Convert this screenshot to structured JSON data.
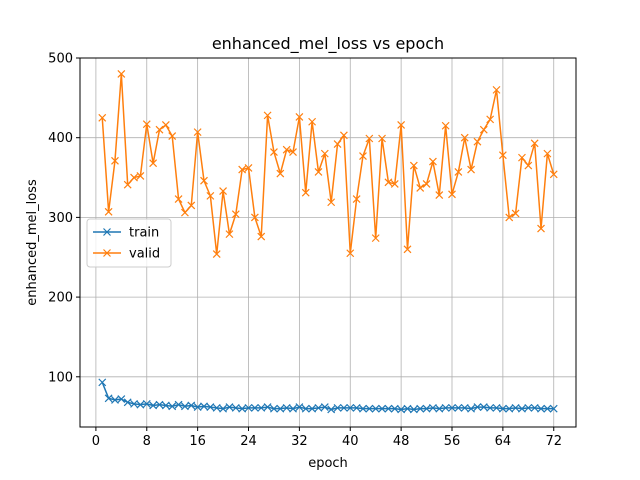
{
  "chart_data": {
    "type": "line",
    "title": "enhanced_mel_loss vs epoch",
    "xlabel": "epoch",
    "ylabel": "enhanced_mel_loss",
    "xlim": [
      -2.5,
      75.5
    ],
    "ylim": [
      37,
      500
    ],
    "xticks": [
      0,
      8,
      16,
      24,
      32,
      40,
      48,
      56,
      64,
      72
    ],
    "yticks": [
      100,
      200,
      300,
      400,
      500
    ],
    "grid": true,
    "legend": "center-left",
    "marker": "x",
    "series": [
      {
        "name": "train",
        "color": "#1f77b4",
        "x": [
          1,
          2,
          3,
          4,
          5,
          6,
          7,
          8,
          9,
          10,
          11,
          12,
          13,
          14,
          15,
          16,
          17,
          18,
          19,
          20,
          21,
          22,
          23,
          24,
          25,
          26,
          27,
          28,
          29,
          30,
          31,
          32,
          33,
          34,
          35,
          36,
          37,
          38,
          39,
          40,
          41,
          42,
          43,
          44,
          45,
          46,
          47,
          48,
          49,
          50,
          51,
          52,
          53,
          54,
          55,
          56,
          57,
          58,
          59,
          60,
          61,
          62,
          63,
          64,
          65,
          66,
          67,
          68,
          69,
          70,
          71,
          72
        ],
        "y": [
          93,
          73,
          71,
          72,
          68,
          66,
          65,
          66,
          64,
          65,
          64,
          63,
          65,
          63,
          64,
          62,
          63,
          62,
          61,
          60,
          62,
          61,
          60,
          61,
          61,
          61,
          62,
          60,
          60,
          61,
          60,
          62,
          60,
          60,
          61,
          62,
          59,
          61,
          61,
          61,
          61,
          60,
          60,
          60,
          60,
          60,
          60,
          59,
          60,
          59,
          60,
          60,
          61,
          60,
          61,
          61,
          61,
          61,
          60,
          62,
          62,
          61,
          61,
          60,
          60,
          61,
          60,
          61,
          61,
          60,
          60,
          60
        ]
      },
      {
        "name": "valid",
        "color": "#ff7f0e",
        "x": [
          1,
          2,
          3,
          4,
          5,
          6,
          7,
          8,
          9,
          10,
          11,
          12,
          13,
          14,
          15,
          16,
          17,
          18,
          19,
          20,
          21,
          22,
          23,
          24,
          25,
          26,
          27,
          28,
          29,
          30,
          31,
          32,
          33,
          34,
          35,
          36,
          37,
          38,
          39,
          40,
          41,
          42,
          43,
          44,
          45,
          46,
          47,
          48,
          49,
          50,
          51,
          52,
          53,
          54,
          55,
          56,
          57,
          58,
          59,
          60,
          61,
          62,
          63,
          64,
          65,
          66,
          67,
          68,
          69,
          70,
          71,
          72
        ],
        "y": [
          425,
          307,
          371,
          480,
          341,
          350,
          352,
          417,
          368,
          410,
          416,
          402,
          323,
          306,
          315,
          407,
          346,
          327,
          254,
          333,
          279,
          304,
          360,
          362,
          300,
          276,
          428,
          382,
          355,
          385,
          382,
          426,
          331,
          420,
          357,
          380,
          319,
          392,
          403,
          255,
          323,
          377,
          399,
          274,
          399,
          344,
          342,
          416,
          260,
          365,
          337,
          342,
          370,
          328,
          415,
          329,
          357,
          400,
          360,
          395,
          410,
          423,
          460,
          378,
          300,
          305,
          375,
          365,
          393,
          286,
          380,
          354
        ]
      }
    ]
  }
}
